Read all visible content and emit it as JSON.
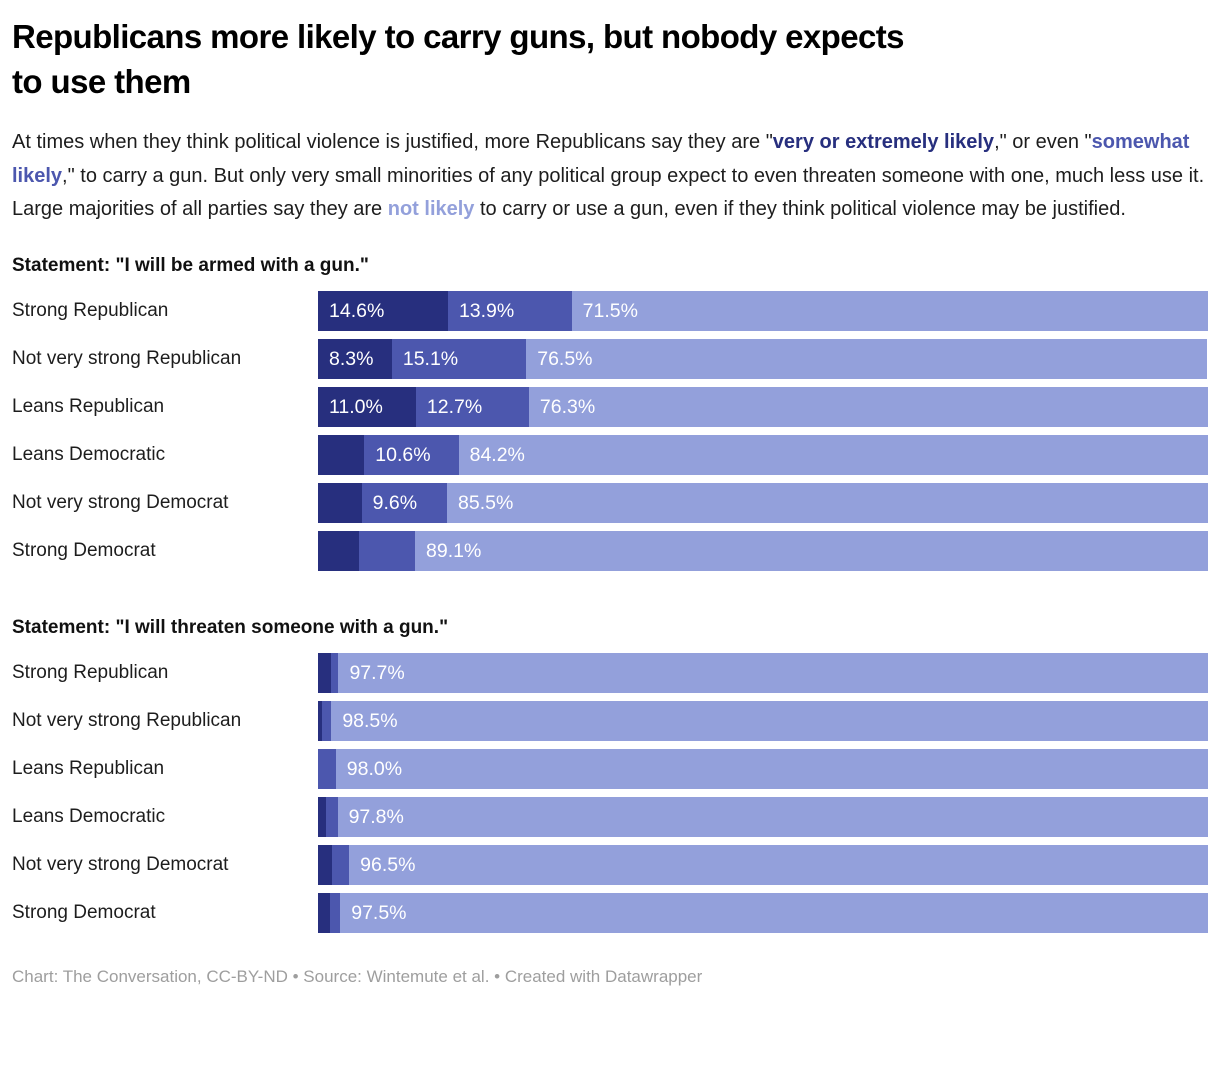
{
  "title_lines": [
    "Republicans more likely to carry guns, but nobody expects",
    "to use them"
  ],
  "intro_segments": [
    {
      "text": "At times when they think political violence is justified, more Republicans say they are \"",
      "color_key": null
    },
    {
      "text": "very or extremely likely",
      "color_key": "very_or_extremely_likely"
    },
    {
      "text": ",\" or even \"",
      "color_key": null
    },
    {
      "text": "somewhat likely",
      "color_key": "somewhat_likely"
    },
    {
      "text": ",\" to carry a gun. But only very small minorities of any political group expect to even threaten someone with one, much less use it. Large majorities of all parties say they are ",
      "color_key": null
    },
    {
      "text": "not likely",
      "color_key": "not_likely"
    },
    {
      "text": " to carry or use a gun, even if they think political violence may be justified.",
      "color_key": null
    }
  ],
  "legend_colors": {
    "very_or_extremely_likely": "#272f7e",
    "somewhat_likely": "#4c57ae",
    "not_likely": "#93a0db"
  },
  "chart_data": [
    {
      "type": "bar",
      "stacked": true,
      "normalized_to_100": true,
      "xlim": [
        0,
        100
      ],
      "statement": "Statement: \"I will be armed with a gun.\"",
      "categories": [
        "Strong Republican",
        "Not very strong Republican",
        "Leans Republican",
        "Leans Democratic",
        "Not very strong Democrat",
        "Strong Democrat"
      ],
      "series": [
        {
          "key": "very_or_extremely_likely",
          "name": "very or extremely likely",
          "color": "#272f7e",
          "values": [
            14.6,
            8.3,
            11.0,
            5.2,
            4.9,
            4.6
          ],
          "labels": [
            "14.6%",
            "8.3%",
            "11.0%",
            "",
            "",
            ""
          ]
        },
        {
          "key": "somewhat_likely",
          "name": "somewhat likely",
          "color": "#4c57ae",
          "values": [
            13.9,
            15.1,
            12.7,
            10.6,
            9.6,
            6.3
          ],
          "labels": [
            "13.9%",
            "15.1%",
            "12.7%",
            "10.6%",
            "9.6%",
            ""
          ]
        },
        {
          "key": "not_likely",
          "name": "not likely",
          "color": "#93a0db",
          "values": [
            71.5,
            76.5,
            76.3,
            84.2,
            85.5,
            89.1
          ],
          "labels": [
            "71.5%",
            "76.5%",
            "76.3%",
            "84.2%",
            "85.5%",
            "89.1%"
          ]
        }
      ]
    },
    {
      "type": "bar",
      "stacked": true,
      "normalized_to_100": true,
      "xlim": [
        0,
        100
      ],
      "statement": "Statement: \"I will threaten someone with a gun.\"",
      "categories": [
        "Strong Republican",
        "Not very strong Republican",
        "Leans Republican",
        "Leans Democratic",
        "Not very strong Democrat",
        "Strong Democrat"
      ],
      "series": [
        {
          "key": "very_or_extremely_likely",
          "name": "very or extremely likely",
          "color": "#272f7e",
          "values": [
            1.5,
            0.4,
            0.0,
            0.9,
            1.6,
            1.4
          ],
          "labels": [
            "",
            "",
            "",
            "",
            "",
            ""
          ]
        },
        {
          "key": "somewhat_likely",
          "name": "somewhat likely",
          "color": "#4c57ae",
          "values": [
            0.8,
            1.1,
            2.0,
            1.3,
            1.9,
            1.1
          ],
          "labels": [
            "",
            "",
            "",
            "",
            "",
            ""
          ]
        },
        {
          "key": "not_likely",
          "name": "not likely",
          "color": "#93a0db",
          "values": [
            97.7,
            98.5,
            98.0,
            97.8,
            96.5,
            97.5
          ],
          "labels": [
            "97.7%",
            "98.5%",
            "98.0%",
            "97.8%",
            "96.5%",
            "97.5%"
          ]
        }
      ]
    }
  ],
  "footer": "Chart: The Conversation, CC-BY-ND • Source: Wintemute et al. • Created with Datawrapper"
}
